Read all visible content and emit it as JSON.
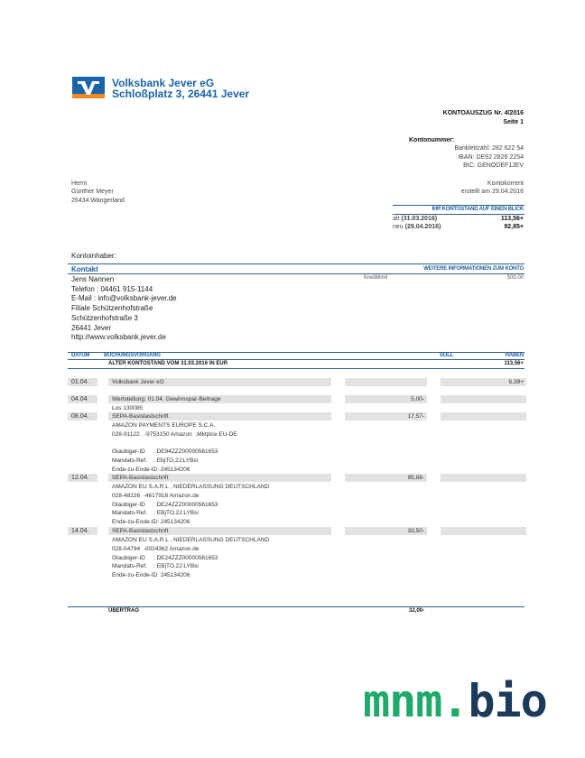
{
  "bank": {
    "name": "Volksbank Jever eG",
    "address": "Schloßplatz 3, 26441 Jever",
    "logo_colors": {
      "blue": "#1a64a8",
      "orange": "#f08a1c"
    }
  },
  "statement": {
    "title": "KONTOAUSZUG  Nr. 4/2016",
    "page": "Seite 1",
    "account_label": "Kontonummer:",
    "blz": "Bankleitzahl: 282 622 54",
    "iban": "IBAN: DE92 2826 2254",
    "bic": "BIC: GENODEF1JEV",
    "account_type": "Kontokorrent",
    "created": "erstellt am 29.04.2016"
  },
  "recipient": {
    "salutation": "Herrn",
    "name": "Günther Meyer",
    "city": "26434 Wangerland"
  },
  "balance_box": {
    "title": "IHR KONTOSTAND AUF EINEN BLICK",
    "old_label": "alt",
    "old_date": "(31.03.2016)",
    "old_value": "113,56+",
    "new_label": "neu",
    "new_date": "(29.04.2016)",
    "new_value": "92,85+"
  },
  "holder_label": "Kontoinhaber:",
  "contact": {
    "header": "Kontakt",
    "info_header": "WEITERE INFORMATIONEN ZUM KONTO",
    "lines": [
      "Jens Nannen",
      "Telefon : 04461 915-1144",
      "E-Mail : info@volksbank-jever.de",
      "Filiale Schützenhofstraße",
      "Schützenhofstraße 3",
      "26441 Jever",
      "http://www.volksbank.jever.de"
    ],
    "credit_label": "Kreditlimit",
    "credit_value": "500.00"
  },
  "table": {
    "headers": {
      "date": "DATUM",
      "desc": "BUCHUNGSVORGANG",
      "soll": "SOLL",
      "haben": "HABEN"
    },
    "opening_label": "ALTER KONTOSTAND VOM 31.03.2016 IN EUR",
    "opening_value": "113,56+",
    "rows": [
      {
        "date": "01.04.",
        "title": "Volksbank Jever eG",
        "soll": "",
        "haben": "6,39+",
        "details": []
      },
      {
        "date": "04.04.",
        "title": "Wertstellung: 01.04. Gewinnspar-Beitrage",
        "soll": "5,00-",
        "haben": "",
        "details": [
          "Los 130085"
        ]
      },
      {
        "date": "08.04.",
        "title": "SEPA-Basislastschrift",
        "soll": "17,57-",
        "haben": "",
        "details": [
          "AMAZON PAYMENTS EUROPE S.C.A.",
          "028-91122   -9753150 Amazon  .Mktplce EU-DE",
          "",
          "Glaubiger-ID     : DE94ZZZ00000561653",
          "Mandats-Ref.    : EbjTO,2J:LYBsi",
          "Ende-zu-Ende-ID: 245134206"
        ]
      },
      {
        "date": "12.04.",
        "title": "SEPA-Basislastschrift",
        "soll": "95,88-",
        "haben": "",
        "details": [
          "AMAZON EU S.A.R.L , NIEDERLASSUNG DEUTSCHLAND",
          "028-48226  -4617918 Amazon.de",
          "Glaubiger-ID     : DE24ZZZ00000561653",
          "Mandats-Ref.    : EBjTO,2J:LYBsi",
          "Ende-zu-Ende-ID: 245134206"
        ]
      },
      {
        "date": "14.04.",
        "title": "SEPA-Basislastschrift",
        "soll": "33,50-",
        "haben": "",
        "details": [
          "AMAZON EU S.A.R.L , NIEDERLASSUNG DEUTSCHLAND",
          "028-54794  -0024362 Amazon.de",
          "Glaubiger-ID     : DE24ZZZ00000561653",
          "Mandats-Ref.    : EBjTO,2J:LYBsi",
          "Ende-zu-Ende-ID: 245134206"
        ]
      }
    ],
    "carry_label": "ÜBERTRAG",
    "carry_value": "32,00-"
  },
  "watermark": {
    "part1": "mnm.",
    "part2": "bio",
    "color1": "#1faa6b",
    "color2": "#1e3a5a"
  }
}
